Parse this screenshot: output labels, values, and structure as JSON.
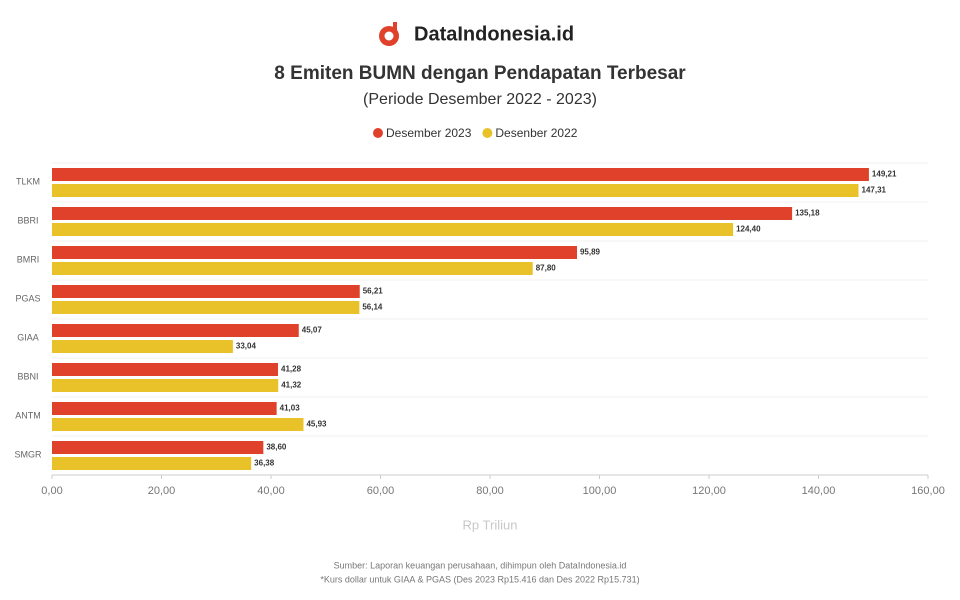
{
  "brand": "DataIndonesia.id",
  "chart_data": {
    "type": "hbar",
    "title": "8 Emiten BUMN dengan Pendapatan Terbesar",
    "subtitle": "(Periode Desember 2022 - 2023)",
    "categories": [
      "TLKM",
      "BBRI",
      "BMRI",
      "PGAS",
      "GIAA",
      "BBNI",
      "ANTM",
      "SMGR"
    ],
    "series": [
      {
        "name": "Desember 2023",
        "color": "#e0412b",
        "values": [
          149.21,
          135.18,
          95.89,
          56.21,
          45.07,
          41.28,
          41.03,
          38.6
        ],
        "value_labels": [
          "149,21",
          "135,18",
          "95,89",
          "56,21",
          "45,07",
          "41,28",
          "41,03",
          "38,60"
        ]
      },
      {
        "name": "Desenber 2022",
        "color": "#e9c22a",
        "values": [
          147.31,
          124.4,
          87.8,
          56.14,
          33.04,
          41.32,
          45.93,
          36.38
        ],
        "value_labels": [
          "147,31",
          "124,40",
          "87,80",
          "56,14",
          "33,04",
          "41,32",
          "45,93",
          "36,38"
        ]
      }
    ],
    "xlim": [
      0,
      160
    ],
    "xticks": [
      {
        "value": 0,
        "label": "0,00"
      },
      {
        "value": 20,
        "label": "20,00"
      },
      {
        "value": 40,
        "label": "40,00"
      },
      {
        "value": 60,
        "label": "60,00"
      },
      {
        "value": 80,
        "label": "80,00"
      },
      {
        "value": 100,
        "label": "100,00"
      },
      {
        "value": 120,
        "label": "120,00"
      },
      {
        "value": 140,
        "label": "140,00"
      },
      {
        "value": 160,
        "label": "160,00"
      }
    ],
    "xlabel": "Rp Triliun",
    "legend": "top"
  },
  "footer": [
    "Sumber: Laporan keuangan perusahaan, dihimpun oleh DataIndonesia.id",
    "*Kurs dollar untuk GIAA & PGAS (Des 2023 Rp15.416 dan Des 2022 Rp15.731)"
  ]
}
